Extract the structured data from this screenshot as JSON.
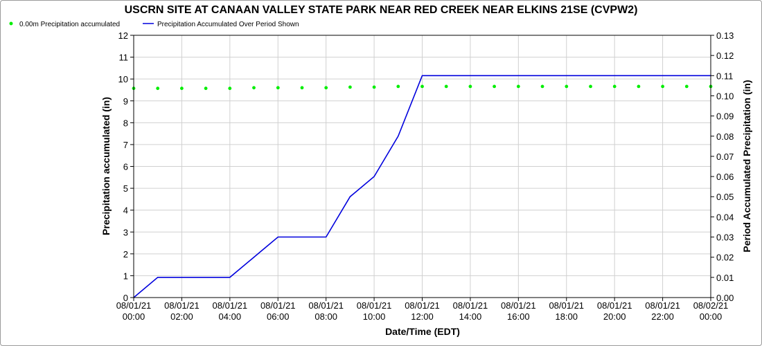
{
  "chart_data": {
    "type": "line",
    "title": "USCRN SITE AT CANAAN VALLEY STATE PARK NEAR RED CREEK NEAR ELKINS 21SE (CVPW2)",
    "xlabel": "Date/Time (EDT)",
    "ylabel_left": "Precipitation accumulated (in)",
    "ylabel_right": "Period Accumulated Precipitation (in)",
    "x_ticks": [
      {
        "date": "08/01/21",
        "time": "00:00"
      },
      {
        "date": "08/01/21",
        "time": "02:00"
      },
      {
        "date": "08/01/21",
        "time": "04:00"
      },
      {
        "date": "08/01/21",
        "time": "06:00"
      },
      {
        "date": "08/01/21",
        "time": "08:00"
      },
      {
        "date": "08/01/21",
        "time": "10:00"
      },
      {
        "date": "08/01/21",
        "time": "12:00"
      },
      {
        "date": "08/01/21",
        "time": "14:00"
      },
      {
        "date": "08/01/21",
        "time": "16:00"
      },
      {
        "date": "08/01/21",
        "time": "18:00"
      },
      {
        "date": "08/01/21",
        "time": "20:00"
      },
      {
        "date": "08/01/21",
        "time": "22:00"
      },
      {
        "date": "08/02/21",
        "time": "00:00"
      }
    ],
    "xlim": [
      "08/01/21 00:00",
      "08/02/21 00:00"
    ],
    "ylim_left": [
      0,
      12
    ],
    "ylim_right": [
      0,
      0.13
    ],
    "y_ticks_left": [
      "0",
      "1",
      "2",
      "3",
      "4",
      "5",
      "6",
      "7",
      "8",
      "9",
      "10",
      "11",
      "12"
    ],
    "y_ticks_right": [
      "0.00",
      "0.01",
      "0.02",
      "0.03",
      "0.04",
      "0.05",
      "0.06",
      "0.07",
      "0.08",
      "0.09",
      "0.10",
      "0.11",
      "0.12",
      "0.13"
    ],
    "grid": true,
    "legend_position": "top-left",
    "series": [
      {
        "name": "0.00m Precipitation accumulated",
        "type": "scatter",
        "axis": "left",
        "color": "#00ee00",
        "x": [
          "08/01/21 00:00",
          "08/01/21 01:00",
          "08/01/21 02:00",
          "08/01/21 03:00",
          "08/01/21 04:00",
          "08/01/21 05:00",
          "08/01/21 06:00",
          "08/01/21 07:00",
          "08/01/21 08:00",
          "08/01/21 09:00",
          "08/01/21 10:00",
          "08/01/21 11:00",
          "08/01/21 12:00",
          "08/01/21 13:00",
          "08/01/21 14:00",
          "08/01/21 15:00",
          "08/01/21 16:00",
          "08/01/21 17:00",
          "08/01/21 18:00",
          "08/01/21 19:00",
          "08/01/21 20:00",
          "08/01/21 21:00",
          "08/01/21 22:00",
          "08/01/21 23:00",
          "08/02/21 00:00"
        ],
        "y": [
          9.57,
          9.57,
          9.57,
          9.57,
          9.57,
          9.6,
          9.6,
          9.6,
          9.6,
          9.63,
          9.63,
          9.66,
          9.66,
          9.66,
          9.66,
          9.66,
          9.66,
          9.66,
          9.66,
          9.66,
          9.66,
          9.66,
          9.66,
          9.66,
          9.66
        ]
      },
      {
        "name": "Precipitation Accumulated Over Period Shown",
        "type": "line",
        "axis": "right",
        "color": "#0000dd",
        "x": [
          "08/01/21 00:00",
          "08/01/21 01:00",
          "08/01/21 02:00",
          "08/01/21 03:00",
          "08/01/21 04:00",
          "08/01/21 05:00",
          "08/01/21 06:00",
          "08/01/21 07:00",
          "08/01/21 08:00",
          "08/01/21 09:00",
          "08/01/21 10:00",
          "08/01/21 11:00",
          "08/01/21 12:00",
          "08/01/21 13:00",
          "08/01/21 14:00",
          "08/01/21 15:00",
          "08/01/21 16:00",
          "08/01/21 17:00",
          "08/01/21 18:00",
          "08/01/21 19:00",
          "08/01/21 20:00",
          "08/01/21 21:00",
          "08/01/21 22:00",
          "08/01/21 23:00",
          "08/02/21 00:00"
        ],
        "y": [
          0.0,
          0.01,
          0.01,
          0.01,
          0.01,
          0.02,
          0.03,
          0.03,
          0.03,
          0.05,
          0.06,
          0.08,
          0.11,
          0.11,
          0.11,
          0.11,
          0.11,
          0.11,
          0.11,
          0.11,
          0.11,
          0.11,
          0.11,
          0.11,
          0.11
        ]
      }
    ]
  }
}
